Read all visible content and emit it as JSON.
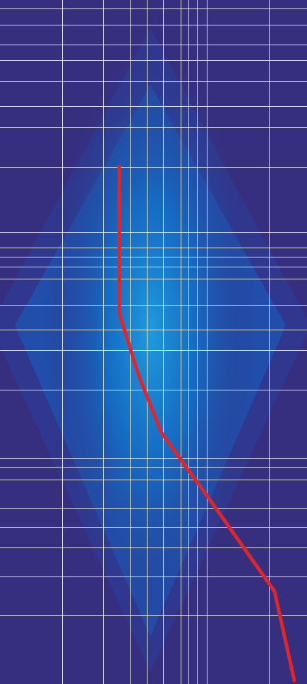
{
  "colors": {
    "background": "#362e7f",
    "glow_core": "#1e9bde",
    "glow_mid": "#146dc6",
    "grid_line": "#ffffff",
    "trace_line": "#e0262a"
  }
}
